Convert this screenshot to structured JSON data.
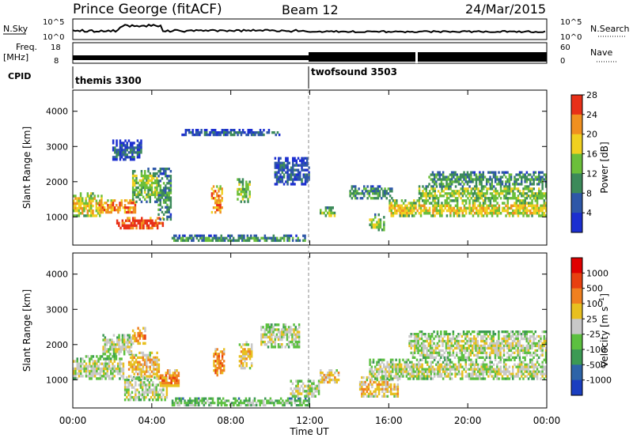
{
  "header": {
    "radar": "Prince George (fitACF)",
    "beam": "Beam 12",
    "date": "24/Mar/2015"
  },
  "strip_labels": {
    "nsky": "N.Sky",
    "nsky_ticks": [
      "10^5",
      "10^0"
    ],
    "nsearch": "N.Search",
    "nsearch_ticks": [
      "10^5",
      "10^0"
    ],
    "freq": "Freq.",
    "freq_unit": "[MHz]",
    "freq_ticks": [
      "18",
      "8"
    ],
    "nave": "Nave",
    "nave_ticks": [
      "60",
      "0"
    ],
    "cpid": "CPID",
    "modes": [
      "themis 3300",
      "twofsound 3503"
    ]
  },
  "chart_data": [
    {
      "type": "heatmap",
      "name": "power-panel",
      "ylabel": "Slant Range [km]",
      "xlabel": "",
      "yticks": [
        1000,
        2000,
        3000,
        4000
      ],
      "ylim": [
        200,
        4600
      ],
      "xlim": [
        0,
        24
      ],
      "colorbar": {
        "label": "Power [dB]",
        "ticks": [
          "4",
          "8",
          "12",
          "16",
          "20",
          "24",
          "28"
        ],
        "colors": [
          "#1c2fd0",
          "#2e57a8",
          "#3c8a5a",
          "#6bbf3a",
          "#f0d020",
          "#f09020",
          "#e83018"
        ]
      },
      "bands": [
        {
          "t0": 0.0,
          "t1": 1.5,
          "r0": 1000,
          "r1": 1700,
          "level": 4
        },
        {
          "t0": 1.3,
          "t1": 3.2,
          "r0": 1100,
          "r1": 1500,
          "level": 5
        },
        {
          "t0": 2.2,
          "t1": 4.6,
          "r0": 650,
          "r1": 1000,
          "level": 6
        },
        {
          "t0": 3.0,
          "t1": 4.3,
          "r0": 1400,
          "r1": 2400,
          "level": 3
        },
        {
          "t0": 2.0,
          "t1": 3.5,
          "r0": 2600,
          "r1": 3200,
          "level": 1
        },
        {
          "t0": 4.3,
          "t1": 5.0,
          "r0": 900,
          "r1": 2400,
          "level": 2
        },
        {
          "t0": 5.0,
          "t1": 11.8,
          "r0": 300,
          "r1": 500,
          "level": 2
        },
        {
          "t0": 7.0,
          "t1": 7.6,
          "r0": 1100,
          "r1": 1900,
          "level": 5
        },
        {
          "t0": 8.3,
          "t1": 9.0,
          "r0": 1400,
          "r1": 2100,
          "level": 3
        },
        {
          "t0": 5.5,
          "t1": 10.5,
          "r0": 3300,
          "r1": 3500,
          "level": 1
        },
        {
          "t0": 10.2,
          "t1": 12.0,
          "r0": 1900,
          "r1": 2700,
          "level": 1
        },
        {
          "t0": 12.5,
          "t1": 13.3,
          "r0": 1000,
          "r1": 1300,
          "level": 3
        },
        {
          "t0": 14.0,
          "t1": 16.2,
          "r0": 1500,
          "r1": 1900,
          "level": 2
        },
        {
          "t0": 15.0,
          "t1": 15.8,
          "r0": 600,
          "r1": 1100,
          "level": 3
        },
        {
          "t0": 16.0,
          "t1": 24.0,
          "r0": 1000,
          "r1": 1500,
          "level": 4
        },
        {
          "t0": 17.5,
          "t1": 24.0,
          "r0": 1500,
          "r1": 1900,
          "level": 3
        },
        {
          "t0": 18.0,
          "t1": 24.0,
          "r0": 1900,
          "r1": 2300,
          "level": 2
        }
      ]
    },
    {
      "type": "heatmap",
      "name": "velocity-panel",
      "ylabel": "Slant Range [km]",
      "xlabel": "Time UT",
      "yticks": [
        1000,
        2000,
        3000,
        4000
      ],
      "ylim": [
        200,
        4600
      ],
      "xlim": [
        0,
        24
      ],
      "xticks": [
        "00:00",
        "04:00",
        "08:00",
        "12:00",
        "16:00",
        "20:00",
        "00:00"
      ],
      "colorbar": {
        "label": "Velocity [m s^-1]",
        "unit_exponent": "-1",
        "ticks": [
          "1000",
          "500",
          "100",
          "25",
          "-25",
          "-100",
          "-500",
          "-1000"
        ],
        "colors": [
          "#1a3ec0",
          "#2e64a8",
          "#3c9a54",
          "#5cc040",
          "#c8c8c8",
          "#e8c020",
          "#f08020",
          "#e84010",
          "#e00000"
        ]
      },
      "bands": [
        {
          "t0": 0.0,
          "t1": 2.6,
          "r0": 1000,
          "r1": 1700,
          "level": 4
        },
        {
          "t0": 1.5,
          "t1": 3.0,
          "r0": 1700,
          "r1": 2300,
          "level": 4
        },
        {
          "t0": 2.6,
          "t1": 4.8,
          "r0": 400,
          "r1": 1100,
          "level": 4
        },
        {
          "t0": 2.8,
          "t1": 4.4,
          "r0": 1000,
          "r1": 1800,
          "level": 5
        },
        {
          "t0": 3.0,
          "t1": 3.7,
          "r0": 2000,
          "r1": 2500,
          "level": 6
        },
        {
          "t0": 4.4,
          "t1": 5.4,
          "r0": 800,
          "r1": 1300,
          "level": 6
        },
        {
          "t0": 5.0,
          "t1": 12.0,
          "r0": 250,
          "r1": 500,
          "level": 3
        },
        {
          "t0": 7.1,
          "t1": 7.7,
          "r0": 1100,
          "r1": 1900,
          "level": 6
        },
        {
          "t0": 8.4,
          "t1": 9.1,
          "r0": 1300,
          "r1": 2100,
          "level": 5
        },
        {
          "t0": 9.5,
          "t1": 11.5,
          "r0": 1900,
          "r1": 2600,
          "level": 4
        },
        {
          "t0": 11.0,
          "t1": 12.5,
          "r0": 500,
          "r1": 1000,
          "level": 4
        },
        {
          "t0": 12.5,
          "t1": 13.5,
          "r0": 900,
          "r1": 1300,
          "level": 5
        },
        {
          "t0": 14.5,
          "t1": 16.5,
          "r0": 500,
          "r1": 1100,
          "level": 5
        },
        {
          "t0": 15.0,
          "t1": 24.0,
          "r0": 1000,
          "r1": 1600,
          "level": 4
        },
        {
          "t0": 17.0,
          "t1": 24.0,
          "r0": 1600,
          "r1": 2400,
          "level": 4
        }
      ]
    }
  ]
}
